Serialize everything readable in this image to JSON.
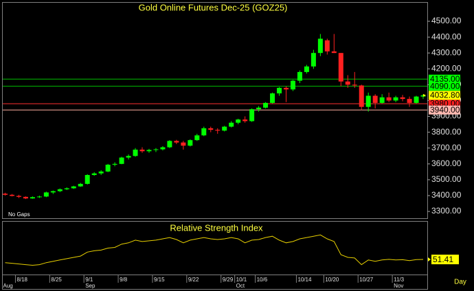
{
  "chart_data": [
    {
      "type": "candlestick",
      "title": "Gold Online Futures Dec-25 (GOZ25)",
      "note": "No Gaps",
      "period": "Day",
      "categories": [
        null,
        null,
        "8/18",
        null,
        null,
        null,
        null,
        "8/25",
        null,
        null,
        null,
        null,
        "9/1",
        null,
        null,
        null,
        null,
        "9/8",
        null,
        null,
        null,
        null,
        "9/15",
        null,
        null,
        null,
        null,
        "9/22",
        null,
        null,
        null,
        null,
        "9/29",
        null,
        "10/1",
        null,
        null,
        "10/6",
        null,
        null,
        null,
        null,
        null,
        "10/14",
        null,
        null,
        null,
        "10/20",
        null,
        null,
        null,
        null,
        "10/27",
        null,
        null,
        null,
        null,
        "11/3",
        null,
        null,
        null,
        null
      ],
      "months": [
        "Aug",
        null,
        null,
        null,
        null,
        null,
        null,
        null,
        null,
        null,
        null,
        null,
        "Sep",
        null,
        null,
        null,
        null,
        null,
        null,
        null,
        null,
        null,
        null,
        null,
        null,
        null,
        null,
        null,
        null,
        null,
        null,
        null,
        null,
        null,
        "Oct",
        null,
        null,
        null,
        null,
        null,
        null,
        null,
        null,
        null,
        null,
        null,
        null,
        null,
        null,
        null,
        null,
        null,
        null,
        null,
        null,
        null,
        null,
        "Nov",
        null,
        null,
        null,
        null
      ],
      "open": [
        3412,
        3405,
        3398,
        3392,
        3382,
        3390,
        3394,
        3420,
        3428,
        3440,
        3446,
        3458,
        3474,
        3530,
        3540,
        3552,
        3595,
        3600,
        3640,
        3650,
        3690,
        3680,
        3688,
        3692,
        3705,
        3745,
        3735,
        3715,
        3750,
        3780,
        3825,
        3815,
        3810,
        3835,
        3860,
        3880,
        3870,
        3945,
        3955,
        3985,
        4045,
        4080,
        4070,
        4125,
        4180,
        4215,
        4300,
        4380,
        4310,
        4300,
        4120,
        4100,
        4095,
        3960,
        4030,
        3985,
        4020,
        4000,
        4020,
        4010,
        3985,
        4025
      ],
      "high": [
        3418,
        3410,
        3405,
        3395,
        3395,
        3400,
        3425,
        3432,
        3445,
        3452,
        3462,
        3480,
        3535,
        3548,
        3560,
        3600,
        3610,
        3645,
        3660,
        3700,
        3705,
        3695,
        3700,
        3712,
        3750,
        3752,
        3745,
        3755,
        3790,
        3835,
        3835,
        3825,
        3840,
        3870,
        3885,
        3900,
        3950,
        3965,
        3990,
        4050,
        4085,
        4090,
        4130,
        4190,
        4225,
        4320,
        4420,
        4390,
        4420,
        4300,
        4160,
        4180,
        4100,
        4050,
        4040,
        4040,
        4050,
        4030,
        4035,
        4025,
        4030,
        4040
      ],
      "low": [
        3400,
        3395,
        3385,
        3378,
        3380,
        3385,
        3390,
        3410,
        3422,
        3435,
        3442,
        3455,
        3470,
        3525,
        3530,
        3548,
        3585,
        3598,
        3628,
        3645,
        3670,
        3670,
        3675,
        3685,
        3700,
        3725,
        3690,
        3710,
        3745,
        3775,
        3800,
        3790,
        3805,
        3830,
        3850,
        3860,
        3865,
        3930,
        3950,
        3980,
        4030,
        3990,
        4060,
        4110,
        4170,
        4200,
        4280,
        4290,
        4300,
        4090,
        4080,
        4080,
        3940,
        3930,
        3950,
        3980,
        3990,
        3990,
        3995,
        3960,
        3980,
        4010
      ],
      "close": [
        3405,
        3398,
        3392,
        3382,
        3390,
        3394,
        3420,
        3428,
        3440,
        3446,
        3458,
        3474,
        3530,
        3540,
        3552,
        3595,
        3600,
        3640,
        3650,
        3690,
        3680,
        3688,
        3692,
        3705,
        3745,
        3735,
        3715,
        3750,
        3780,
        3825,
        3815,
        3810,
        3835,
        3860,
        3880,
        3870,
        3945,
        3955,
        3985,
        4045,
        4080,
        4070,
        4125,
        4180,
        4215,
        4300,
        4390,
        4310,
        4300,
        4120,
        4100,
        4095,
        3960,
        4030,
        3985,
        4020,
        4000,
        4020,
        4010,
        3985,
        4025,
        4032.8
      ],
      "up_color": "#00ff00",
      "down_color": "#ff2020",
      "ylim": [
        3257,
        4617
      ],
      "yticks": [
        {
          "value": 3300,
          "label": "3300.00"
        },
        {
          "value": 3400,
          "label": "3400.00"
        },
        {
          "value": 3500,
          "label": "3500.00"
        },
        {
          "value": 3600,
          "label": "3600.00"
        },
        {
          "value": 3700,
          "label": "3700.00"
        },
        {
          "value": 3800,
          "label": "3800.00"
        },
        {
          "value": 3900,
          "label": "3900.00"
        },
        {
          "value": 4000,
          "label": "4000.00"
        },
        {
          "value": 4100,
          "label": "4100.00"
        },
        {
          "value": 4200,
          "label": "4200.00"
        },
        {
          "value": 4300,
          "label": "4300.00"
        },
        {
          "value": 4400,
          "label": "4400.00"
        },
        {
          "value": 4500,
          "label": "4500.00"
        }
      ],
      "levels": [
        {
          "value": 4135,
          "label": "4135.00",
          "color": "#00c000",
          "label_bg": "#00ff00",
          "label_fg": "#000000"
        },
        {
          "value": 4090,
          "label": "4090.00",
          "color": "#00c000",
          "label_bg": "#00ff00",
          "label_fg": "#000000"
        },
        {
          "value": 3980,
          "label": "3980.00",
          "color": "#ff3030",
          "label_bg": "#ff2020",
          "label_fg": "#000000"
        },
        {
          "value": 3940,
          "label": "3940.00",
          "color": "#ffb0a0",
          "label_bg": "#ffb8b0",
          "label_fg": "#000000"
        }
      ],
      "last_price": {
        "value": 4032.8,
        "label": "4032.80",
        "label_bg": "#ffff00",
        "label_fg": "#000000"
      }
    },
    {
      "type": "line",
      "title": "Relative Strength Index",
      "color": "#e8d000",
      "values": [
        49,
        48.5,
        48,
        47.5,
        47,
        47.5,
        49,
        50,
        51,
        52,
        53,
        54,
        57,
        58,
        58.5,
        60,
        60.5,
        63,
        64,
        66,
        65,
        65.5,
        66,
        67,
        68,
        66.5,
        64,
        66,
        67,
        68,
        67,
        66.5,
        67,
        68,
        67,
        64,
        66,
        66.5,
        68,
        69,
        66,
        64,
        65,
        67,
        68,
        69,
        70,
        67,
        65,
        55,
        53,
        52.5,
        47.5,
        51,
        50,
        51,
        51.5,
        51,
        51.2,
        50.5,
        51.3,
        51.41
      ],
      "ylim": [
        40,
        80
      ],
      "label_bg": "#ffff00",
      "label_fg": "#000000"
    }
  ]
}
